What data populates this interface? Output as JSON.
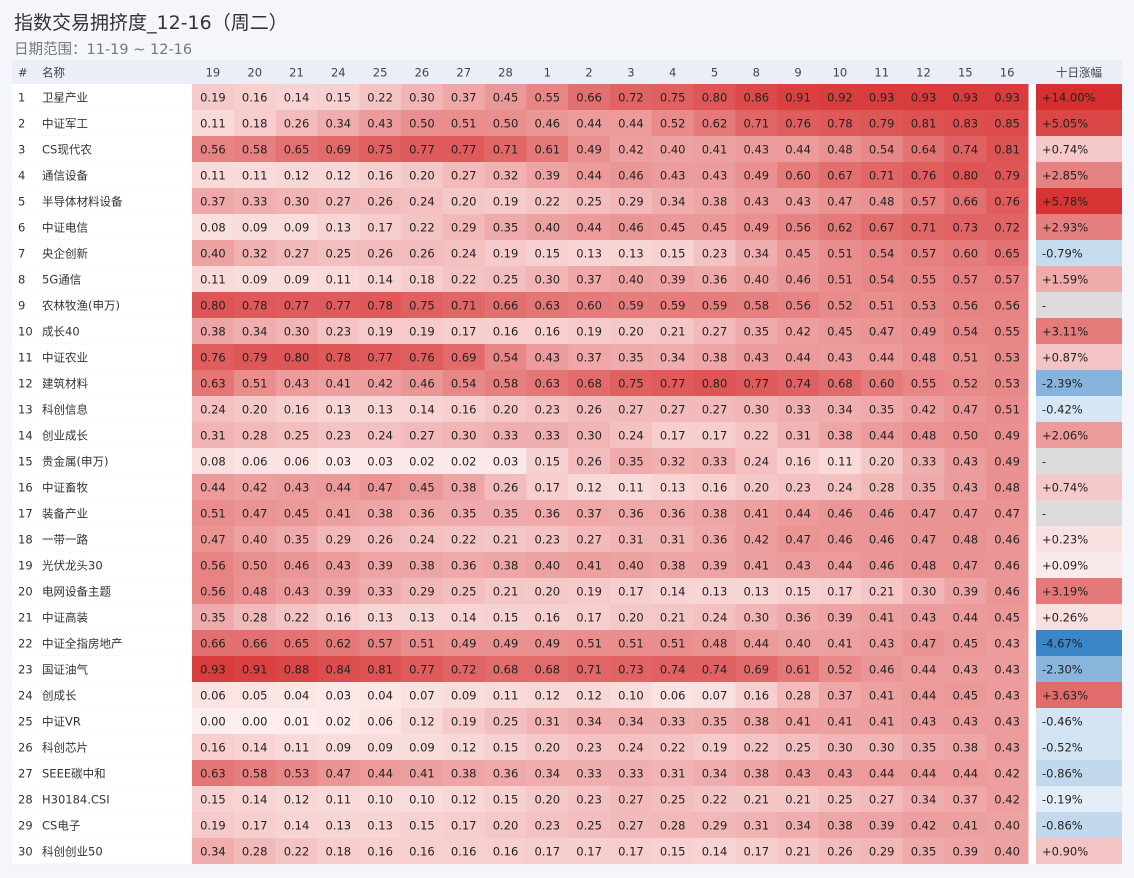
{
  "title": "指数交易拥挤度_12-16（周二）",
  "subtitle": "日期范围：11-19 ~ 12-16",
  "colors": {
    "high": "#d62f2f",
    "low": "#fdeeee",
    "neg": "#3a85c6",
    "na": "#dcdcdc"
  },
  "chart_data": {
    "type": "table",
    "columns": {
      "index": "#",
      "name": "名称",
      "change": "十日涨幅"
    },
    "dates": [
      "19",
      "20",
      "21",
      "24",
      "25",
      "26",
      "27",
      "28",
      "1",
      "2",
      "3",
      "4",
      "5",
      "8",
      "9",
      "10",
      "11",
      "12",
      "15",
      "16"
    ],
    "rows": [
      {
        "rank": "1",
        "name": "卫星产业",
        "values": [
          0.19,
          0.16,
          0.14,
          0.15,
          0.22,
          0.3,
          0.37,
          0.45,
          0.55,
          0.66,
          0.72,
          0.75,
          0.8,
          0.86,
          0.91,
          0.92,
          0.93,
          0.93,
          0.93,
          0.93
        ],
        "change": "+14.00%"
      },
      {
        "rank": "2",
        "name": "中证军工",
        "values": [
          0.11,
          0.18,
          0.26,
          0.34,
          0.43,
          0.5,
          0.51,
          0.5,
          0.46,
          0.44,
          0.44,
          0.52,
          0.62,
          0.71,
          0.76,
          0.78,
          0.79,
          0.81,
          0.83,
          0.85
        ],
        "change": "+5.05%"
      },
      {
        "rank": "3",
        "name": "CS现代农",
        "values": [
          0.56,
          0.58,
          0.65,
          0.69,
          0.75,
          0.77,
          0.77,
          0.71,
          0.61,
          0.49,
          0.42,
          0.4,
          0.41,
          0.43,
          0.44,
          0.48,
          0.54,
          0.64,
          0.74,
          0.81
        ],
        "change": "+0.74%"
      },
      {
        "rank": "4",
        "name": "通信设备",
        "values": [
          0.11,
          0.11,
          0.12,
          0.12,
          0.16,
          0.2,
          0.27,
          0.32,
          0.39,
          0.44,
          0.46,
          0.43,
          0.43,
          0.49,
          0.6,
          0.67,
          0.71,
          0.76,
          0.8,
          0.79
        ],
        "change": "+2.85%"
      },
      {
        "rank": "5",
        "name": "半导体材料设备",
        "values": [
          0.37,
          0.33,
          0.3,
          0.27,
          0.26,
          0.24,
          0.2,
          0.19,
          0.22,
          0.25,
          0.29,
          0.34,
          0.38,
          0.43,
          0.43,
          0.47,
          0.48,
          0.57,
          0.66,
          0.76
        ],
        "change": "+5.78%"
      },
      {
        "rank": "6",
        "name": "中证电信",
        "values": [
          0.08,
          0.09,
          0.09,
          0.13,
          0.17,
          0.22,
          0.29,
          0.35,
          0.4,
          0.44,
          0.46,
          0.45,
          0.45,
          0.49,
          0.56,
          0.62,
          0.67,
          0.71,
          0.73,
          0.72
        ],
        "change": "+2.93%"
      },
      {
        "rank": "7",
        "name": "央企创新",
        "values": [
          0.4,
          0.32,
          0.27,
          0.25,
          0.26,
          0.26,
          0.24,
          0.19,
          0.15,
          0.13,
          0.13,
          0.15,
          0.23,
          0.34,
          0.45,
          0.51,
          0.54,
          0.57,
          0.6,
          0.65
        ],
        "change": "-0.79%"
      },
      {
        "rank": "8",
        "name": "5G通信",
        "values": [
          0.11,
          0.09,
          0.09,
          0.11,
          0.14,
          0.18,
          0.22,
          0.25,
          0.3,
          0.37,
          0.4,
          0.39,
          0.36,
          0.4,
          0.46,
          0.51,
          0.54,
          0.55,
          0.57,
          0.57
        ],
        "change": "+1.59%"
      },
      {
        "rank": "9",
        "name": "农林牧渔(申万)",
        "values": [
          0.8,
          0.78,
          0.77,
          0.77,
          0.78,
          0.75,
          0.71,
          0.66,
          0.63,
          0.6,
          0.59,
          0.59,
          0.59,
          0.58,
          0.56,
          0.52,
          0.51,
          0.53,
          0.56,
          0.56
        ],
        "change": "-"
      },
      {
        "rank": "10",
        "name": "成长40",
        "values": [
          0.38,
          0.34,
          0.3,
          0.23,
          0.19,
          0.19,
          0.17,
          0.16,
          0.16,
          0.19,
          0.2,
          0.21,
          0.27,
          0.35,
          0.42,
          0.45,
          0.47,
          0.49,
          0.54,
          0.55
        ],
        "change": "+3.11%"
      },
      {
        "rank": "11",
        "name": "中证农业",
        "values": [
          0.76,
          0.79,
          0.8,
          0.78,
          0.77,
          0.76,
          0.69,
          0.54,
          0.43,
          0.37,
          0.35,
          0.34,
          0.38,
          0.43,
          0.44,
          0.43,
          0.44,
          0.48,
          0.51,
          0.53
        ],
        "change": "+0.87%"
      },
      {
        "rank": "12",
        "name": "建筑材料",
        "values": [
          0.63,
          0.51,
          0.43,
          0.41,
          0.42,
          0.46,
          0.54,
          0.58,
          0.63,
          0.68,
          0.75,
          0.77,
          0.8,
          0.77,
          0.74,
          0.68,
          0.6,
          0.55,
          0.52,
          0.53
        ],
        "change": "-2.39%"
      },
      {
        "rank": "13",
        "name": "科创信息",
        "values": [
          0.24,
          0.2,
          0.16,
          0.13,
          0.13,
          0.14,
          0.16,
          0.2,
          0.23,
          0.26,
          0.27,
          0.27,
          0.27,
          0.3,
          0.33,
          0.34,
          0.35,
          0.42,
          0.47,
          0.51
        ],
        "change": "-0.42%"
      },
      {
        "rank": "14",
        "name": "创业成长",
        "values": [
          0.31,
          0.28,
          0.25,
          0.23,
          0.24,
          0.27,
          0.3,
          0.33,
          0.33,
          0.3,
          0.24,
          0.17,
          0.17,
          0.22,
          0.31,
          0.38,
          0.44,
          0.48,
          0.5,
          0.49
        ],
        "change": "+2.06%"
      },
      {
        "rank": "15",
        "name": "贵金属(申万)",
        "values": [
          0.08,
          0.06,
          0.06,
          0.03,
          0.03,
          0.02,
          0.02,
          0.03,
          0.15,
          0.26,
          0.35,
          0.32,
          0.33,
          0.24,
          0.16,
          0.11,
          0.2,
          0.33,
          0.43,
          0.49
        ],
        "change": "-"
      },
      {
        "rank": "16",
        "name": "中证畜牧",
        "values": [
          0.44,
          0.42,
          0.43,
          0.44,
          0.47,
          0.45,
          0.38,
          0.26,
          0.17,
          0.12,
          0.11,
          0.13,
          0.16,
          0.2,
          0.23,
          0.24,
          0.28,
          0.35,
          0.43,
          0.48
        ],
        "change": "+0.74%"
      },
      {
        "rank": "17",
        "name": "装备产业",
        "values": [
          0.51,
          0.47,
          0.45,
          0.41,
          0.38,
          0.36,
          0.35,
          0.35,
          0.36,
          0.37,
          0.36,
          0.36,
          0.38,
          0.41,
          0.44,
          0.46,
          0.46,
          0.47,
          0.47,
          0.47
        ],
        "change": "-"
      },
      {
        "rank": "18",
        "name": "一带一路",
        "values": [
          0.47,
          0.4,
          0.35,
          0.29,
          0.26,
          0.24,
          0.22,
          0.21,
          0.23,
          0.27,
          0.31,
          0.31,
          0.36,
          0.42,
          0.47,
          0.46,
          0.46,
          0.47,
          0.48,
          0.46
        ],
        "change": "+0.23%"
      },
      {
        "rank": "19",
        "name": "光伏龙头30",
        "values": [
          0.56,
          0.5,
          0.46,
          0.43,
          0.39,
          0.38,
          0.36,
          0.38,
          0.4,
          0.41,
          0.4,
          0.38,
          0.39,
          0.41,
          0.43,
          0.44,
          0.46,
          0.48,
          0.47,
          0.46
        ],
        "change": "+0.09%"
      },
      {
        "rank": "20",
        "name": "电网设备主题",
        "values": [
          0.56,
          0.48,
          0.43,
          0.39,
          0.33,
          0.29,
          0.25,
          0.21,
          0.2,
          0.19,
          0.17,
          0.14,
          0.13,
          0.13,
          0.15,
          0.17,
          0.21,
          0.3,
          0.39,
          0.46
        ],
        "change": "+3.19%"
      },
      {
        "rank": "21",
        "name": "中证高装",
        "values": [
          0.35,
          0.28,
          0.22,
          0.16,
          0.13,
          0.13,
          0.14,
          0.15,
          0.16,
          0.17,
          0.2,
          0.21,
          0.24,
          0.3,
          0.36,
          0.39,
          0.41,
          0.43,
          0.44,
          0.45
        ],
        "change": "+0.26%"
      },
      {
        "rank": "22",
        "name": "中证全指房地产",
        "values": [
          0.66,
          0.66,
          0.65,
          0.62,
          0.57,
          0.51,
          0.49,
          0.49,
          0.49,
          0.51,
          0.51,
          0.51,
          0.48,
          0.44,
          0.4,
          0.41,
          0.43,
          0.47,
          0.45,
          0.43
        ],
        "change": "-4.67%"
      },
      {
        "rank": "23",
        "name": "国证油气",
        "values": [
          0.93,
          0.91,
          0.88,
          0.84,
          0.81,
          0.77,
          0.72,
          0.68,
          0.68,
          0.71,
          0.73,
          0.74,
          0.74,
          0.69,
          0.61,
          0.52,
          0.46,
          0.44,
          0.43,
          0.43
        ],
        "change": "-2.30%"
      },
      {
        "rank": "24",
        "name": "创成长",
        "values": [
          0.06,
          0.05,
          0.04,
          0.03,
          0.04,
          0.07,
          0.09,
          0.11,
          0.12,
          0.12,
          0.1,
          0.06,
          0.07,
          0.16,
          0.28,
          0.37,
          0.41,
          0.44,
          0.45,
          0.43
        ],
        "change": "+3.63%"
      },
      {
        "rank": "25",
        "name": "中证VR",
        "values": [
          0.0,
          0.0,
          0.01,
          0.02,
          0.06,
          0.12,
          0.19,
          0.25,
          0.31,
          0.34,
          0.34,
          0.33,
          0.35,
          0.38,
          0.41,
          0.41,
          0.41,
          0.43,
          0.43,
          0.43
        ],
        "change": "-0.46%"
      },
      {
        "rank": "26",
        "name": "科创芯片",
        "values": [
          0.16,
          0.14,
          0.11,
          0.09,
          0.09,
          0.09,
          0.12,
          0.15,
          0.2,
          0.23,
          0.24,
          0.22,
          0.19,
          0.22,
          0.25,
          0.3,
          0.3,
          0.35,
          0.38,
          0.43
        ],
        "change": "-0.52%"
      },
      {
        "rank": "27",
        "name": "SEEE碳中和",
        "values": [
          0.63,
          0.58,
          0.53,
          0.47,
          0.44,
          0.41,
          0.38,
          0.36,
          0.34,
          0.33,
          0.33,
          0.31,
          0.34,
          0.38,
          0.43,
          0.43,
          0.44,
          0.44,
          0.44,
          0.42
        ],
        "change": "-0.86%"
      },
      {
        "rank": "28",
        "name": "H30184.CSI",
        "values": [
          0.15,
          0.14,
          0.12,
          0.11,
          0.1,
          0.1,
          0.12,
          0.15,
          0.2,
          0.23,
          0.27,
          0.25,
          0.22,
          0.21,
          0.21,
          0.25,
          0.27,
          0.34,
          0.37,
          0.42
        ],
        "change": "-0.19%"
      },
      {
        "rank": "29",
        "name": "CS电子",
        "values": [
          0.19,
          0.17,
          0.14,
          0.13,
          0.13,
          0.15,
          0.17,
          0.2,
          0.23,
          0.25,
          0.27,
          0.28,
          0.29,
          0.31,
          0.34,
          0.38,
          0.39,
          0.42,
          0.41,
          0.4
        ],
        "change": "-0.86%"
      },
      {
        "rank": "30",
        "name": "科创创业50",
        "values": [
          0.34,
          0.28,
          0.22,
          0.18,
          0.16,
          0.16,
          0.16,
          0.16,
          0.17,
          0.17,
          0.17,
          0.15,
          0.14,
          0.17,
          0.21,
          0.26,
          0.29,
          0.35,
          0.39,
          0.4
        ],
        "change": "+0.90%"
      }
    ]
  }
}
